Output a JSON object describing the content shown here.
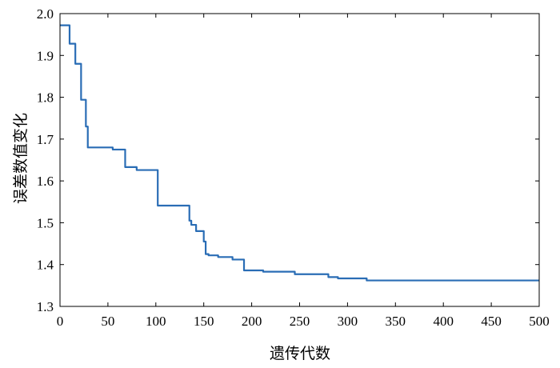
{
  "chart_data": {
    "type": "line",
    "title": "",
    "xlabel": "遗传代数",
    "ylabel": "误差数值变化",
    "xlim": [
      0,
      500
    ],
    "ylim": [
      1.3,
      2.0
    ],
    "x_ticks": [
      "0",
      "50",
      "100",
      "150",
      "200",
      "250",
      "300",
      "350",
      "400",
      "450",
      "500"
    ],
    "y_ticks": [
      "1.3",
      "1.4",
      "1.5",
      "1.6",
      "1.7",
      "1.8",
      "1.9",
      "2.0"
    ],
    "grid": false,
    "legend": "none",
    "line_color": "#2a6db5",
    "series": [
      {
        "step": true,
        "x": [
          0,
          10,
          16,
          22,
          27,
          29,
          55,
          68,
          80,
          102,
          113,
          135,
          137,
          142,
          150,
          152,
          155,
          165,
          180,
          192,
          212,
          245,
          280,
          290,
          320,
          500
        ],
        "y": [
          1.972,
          1.928,
          1.88,
          1.794,
          1.73,
          1.68,
          1.675,
          1.633,
          1.626,
          1.541,
          1.541,
          1.505,
          1.495,
          1.48,
          1.455,
          1.425,
          1.422,
          1.418,
          1.412,
          1.386,
          1.383,
          1.377,
          1.37,
          1.367,
          1.362,
          1.362
        ]
      }
    ]
  }
}
